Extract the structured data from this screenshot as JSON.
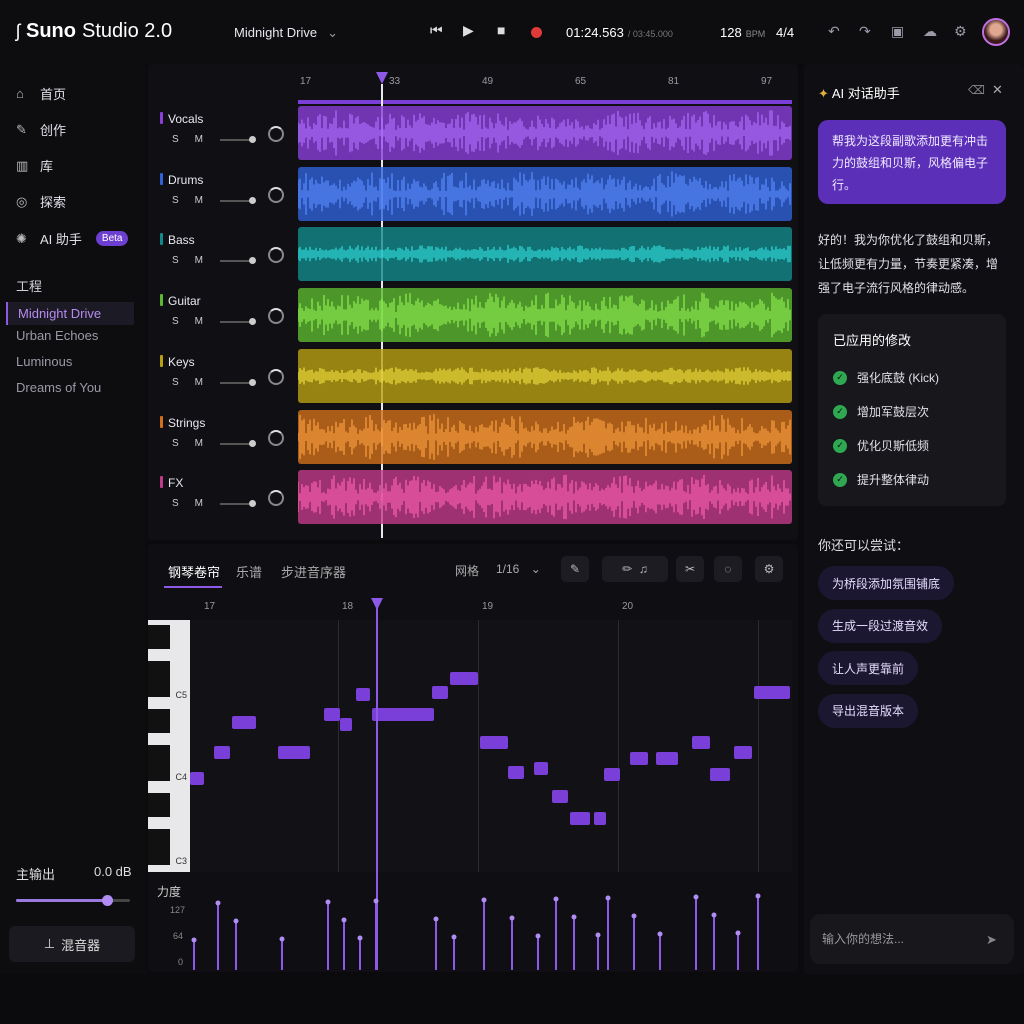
{
  "app": {
    "brand": "Suno",
    "studio": "Studio 2.0"
  },
  "project": {
    "name": "Midnight Drive"
  },
  "transport": {
    "time": "01:24.563",
    "total": "/ 03:45.000",
    "bpm": "128",
    "bpm_unit": "BPM",
    "signature": "4/4"
  },
  "nav": [
    {
      "label": "首页",
      "icon": "home-icon"
    },
    {
      "label": "创作",
      "icon": "pencil-icon"
    },
    {
      "label": "库",
      "icon": "library-icon"
    },
    {
      "label": "探索",
      "icon": "compass-icon"
    },
    {
      "label": "AI 助手",
      "icon": "ai-sparkle-icon",
      "badge": "Beta"
    }
  ],
  "projects": {
    "title": "工程",
    "items": [
      "Midnight Drive",
      "Urban Echoes",
      "Luminous",
      "Dreams of You"
    ],
    "selected": 0
  },
  "master": {
    "label": "主输出",
    "value": "0.0 dB",
    "level": 0.8
  },
  "mixer_label": "混音器",
  "ruler": [
    "17",
    "33",
    "49",
    "65",
    "81",
    "97"
  ],
  "tracks": [
    {
      "name": "Vocals",
      "color": "#8a3fd8",
      "s": "S",
      "m": "M"
    },
    {
      "name": "Drums",
      "color": "#2f62d8",
      "s": "S",
      "m": "M"
    },
    {
      "name": "Bass",
      "color": "#138a8a",
      "s": "S",
      "m": "M"
    },
    {
      "name": "Guitar",
      "color": "#5cb830",
      "s": "S",
      "m": "M"
    },
    {
      "name": "Keys",
      "color": "#b8a010",
      "s": "S",
      "m": "M"
    },
    {
      "name": "Strings",
      "color": "#d0701a",
      "s": "S",
      "m": "M"
    },
    {
      "name": "FX",
      "color": "#c03a8a",
      "s": "S",
      "m": "M"
    }
  ],
  "roll": {
    "tabs": [
      "钢琴卷帘",
      "乐谱",
      "步进音序器"
    ],
    "grid_label": "网格",
    "grid_value": "1/16",
    "bars": [
      "17",
      "18",
      "19",
      "20"
    ],
    "keys": [
      "C5",
      "C4",
      "C3"
    ],
    "velocity_label": "力度",
    "velocity_ticks": [
      "127",
      "64",
      "0"
    ]
  },
  "assistant": {
    "title": "AI 对话助手",
    "user_message": "帮我为这段副歌添加更有冲击力的鼓组和贝斯，风格偏电子行。",
    "reply": "好的！我为你优化了鼓组和贝斯，让低频更有力量，节奏更紧凑，增强了电子流行风格的律动感。",
    "changes_title": "已应用的修改",
    "changes": [
      "强化底鼓 (Kick)",
      "增加军鼓层次",
      "优化贝斯低频",
      "提升整体律动"
    ],
    "try_title": "你还可以尝试：",
    "suggestions": [
      "为桥段添加氛围铺底",
      "生成一段过渡音效",
      "让人声更靠前",
      "导出混音版本"
    ],
    "input_placeholder": "输入你的想法..."
  }
}
